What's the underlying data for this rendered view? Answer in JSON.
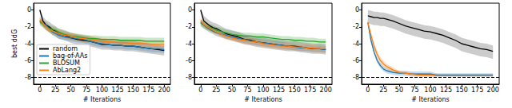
{
  "chart_data": [
    {
      "type": "line",
      "xlabel": "# Iterations",
      "ylabel": "best ddG",
      "legend": "lower left",
      "grid": false,
      "xlim": [
        -10,
        210
      ],
      "xticks": [
        0,
        25,
        50,
        75,
        100,
        125,
        150,
        175,
        200
      ],
      "ylim": [
        -8.8,
        0.8
      ],
      "yticks": [
        0,
        -2,
        -4,
        -6,
        -8
      ],
      "reference_line": {
        "value": -8,
        "color": "#000000",
        "line_style": "dashed"
      },
      "x": [
        0,
        5,
        10,
        15,
        20,
        25,
        30,
        40,
        50,
        60,
        70,
        80,
        90,
        100,
        110,
        120,
        130,
        140,
        150,
        160,
        170,
        180,
        190,
        200
      ],
      "series": [
        {
          "name": "random",
          "color": "#000000",
          "values": [
            0,
            -1.3,
            -1.8,
            -2.0,
            -2.3,
            -2.5,
            -2.8,
            -3.0,
            -3.3,
            -3.5,
            -3.6,
            -3.7,
            -3.9,
            -4.1,
            -4.1,
            -4.2,
            -4.2,
            -4.3,
            -4.3,
            -4.4,
            -4.5,
            -4.6,
            -4.7,
            -4.8
          ],
          "lower": [
            -0.3,
            -1.9,
            -2.4,
            -2.6,
            -2.9,
            -3.1,
            -3.4,
            -3.6,
            -3.9,
            -4.1,
            -4.2,
            -4.3,
            -4.5,
            -4.7,
            -4.7,
            -4.8,
            -4.8,
            -4.9,
            -4.9,
            -5.0,
            -5.1,
            -5.2,
            -5.3,
            -5.4
          ],
          "upper": [
            0.2,
            -0.8,
            -1.2,
            -1.4,
            -1.7,
            -1.9,
            -2.2,
            -2.4,
            -2.7,
            -2.9,
            -3.0,
            -3.1,
            -3.3,
            -3.5,
            -3.5,
            -3.6,
            -3.6,
            -3.7,
            -3.7,
            -3.8,
            -3.9,
            -4.0,
            -4.1,
            -4.2
          ]
        },
        {
          "name": "bag-of-AAs",
          "color": "#1f77b4",
          "values": [
            -1.3,
            -1.6,
            -1.8,
            -2.2,
            -2.6,
            -2.8,
            -3.0,
            -3.2,
            -3.3,
            -3.4,
            -3.5,
            -3.7,
            -3.9,
            -4.0,
            -4.1,
            -4.2,
            -4.2,
            -4.3,
            -4.3,
            -4.4,
            -4.5,
            -4.6,
            -4.6,
            -4.7
          ],
          "lower": [
            -1.7,
            -2.0,
            -2.2,
            -2.6,
            -3.0,
            -3.2,
            -3.4,
            -3.6,
            -3.7,
            -3.8,
            -3.9,
            -4.1,
            -4.3,
            -4.4,
            -4.5,
            -4.6,
            -4.6,
            -4.7,
            -4.7,
            -4.8,
            -4.9,
            -5.0,
            -5.0,
            -5.1
          ],
          "upper": [
            -0.9,
            -1.2,
            -1.4,
            -1.8,
            -2.2,
            -2.4,
            -2.6,
            -2.8,
            -2.9,
            -3.0,
            -3.1,
            -3.3,
            -3.5,
            -3.6,
            -3.7,
            -3.8,
            -3.8,
            -3.9,
            -3.9,
            -4.0,
            -4.1,
            -4.2,
            -4.2,
            -4.3
          ]
        },
        {
          "name": "BLOSUM",
          "color": "#2ca02c",
          "values": [
            -1.4,
            -1.7,
            -2.0,
            -2.2,
            -2.3,
            -2.4,
            -2.6,
            -2.9,
            -3.1,
            -3.2,
            -3.3,
            -3.4,
            -3.4,
            -3.5,
            -3.5,
            -3.5,
            -3.6,
            -3.6,
            -3.6,
            -3.6,
            -3.7,
            -3.7,
            -3.7,
            -3.7
          ],
          "lower": [
            -1.8,
            -2.1,
            -2.4,
            -2.6,
            -2.7,
            -2.8,
            -3.0,
            -3.3,
            -3.5,
            -3.6,
            -3.7,
            -3.8,
            -3.8,
            -3.9,
            -3.9,
            -3.9,
            -4.0,
            -4.0,
            -4.0,
            -4.0,
            -4.1,
            -4.1,
            -4.1,
            -4.1
          ],
          "upper": [
            -1.0,
            -1.3,
            -1.6,
            -1.8,
            -1.9,
            -2.0,
            -2.2,
            -2.5,
            -2.7,
            -2.8,
            -2.9,
            -3.0,
            -3.0,
            -3.1,
            -3.1,
            -3.1,
            -3.2,
            -3.2,
            -3.2,
            -3.2,
            -3.3,
            -3.3,
            -3.3,
            -3.3
          ]
        },
        {
          "name": "AbLang2",
          "color": "#ff7f0e",
          "values": [
            -1.2,
            -1.6,
            -2.0,
            -2.3,
            -2.5,
            -2.6,
            -2.8,
            -3.0,
            -3.1,
            -3.3,
            -3.4,
            -3.5,
            -3.6,
            -3.7,
            -3.8,
            -3.8,
            -3.9,
            -3.9,
            -4.0,
            -4.0,
            -4.0,
            -4.1,
            -4.1,
            -4.1
          ],
          "lower": [
            -1.6,
            -2.0,
            -2.4,
            -2.7,
            -2.9,
            -3.0,
            -3.2,
            -3.4,
            -3.5,
            -3.7,
            -3.8,
            -3.9,
            -4.0,
            -4.1,
            -4.2,
            -4.2,
            -4.3,
            -4.3,
            -4.4,
            -4.4,
            -4.4,
            -4.5,
            -4.5,
            -4.5
          ],
          "upper": [
            -0.8,
            -1.2,
            -1.6,
            -1.9,
            -2.1,
            -2.2,
            -2.4,
            -2.6,
            -2.7,
            -2.9,
            -3.0,
            -3.1,
            -3.2,
            -3.3,
            -3.4,
            -3.4,
            -3.5,
            -3.5,
            -3.6,
            -3.6,
            -3.6,
            -3.7,
            -3.7,
            -3.7
          ]
        }
      ]
    },
    {
      "type": "line",
      "xlabel": "# Iterations",
      "grid": false,
      "xlim": [
        -10,
        210
      ],
      "xticks": [
        0,
        25,
        50,
        75,
        100,
        125,
        150,
        175,
        200
      ],
      "ylim": [
        -8.8,
        0.8
      ],
      "yticks": [
        0,
        -2,
        -4,
        -6,
        -8
      ],
      "reference_line": {
        "value": -8,
        "color": "#000000",
        "line_style": "dashed"
      },
      "x": [
        0,
        5,
        10,
        15,
        20,
        25,
        30,
        40,
        50,
        60,
        70,
        80,
        90,
        100,
        110,
        120,
        130,
        140,
        150,
        160,
        170,
        180,
        190,
        200
      ],
      "series": [
        {
          "name": "random",
          "color": "#000000",
          "values": [
            0,
            -1.3,
            -1.6,
            -1.9,
            -2.1,
            -2.2,
            -2.4,
            -2.8,
            -3.0,
            -3.2,
            -3.5,
            -3.6,
            -3.8,
            -3.9,
            -4.0,
            -4.1,
            -4.2,
            -4.3,
            -4.3,
            -4.4,
            -4.5,
            -4.6,
            -4.6,
            -4.7
          ],
          "lower": [
            -0.3,
            -1.9,
            -2.2,
            -2.5,
            -2.7,
            -2.8,
            -3.0,
            -3.4,
            -3.6,
            -3.8,
            -4.1,
            -4.2,
            -4.4,
            -4.5,
            -4.6,
            -4.7,
            -4.8,
            -4.9,
            -4.9,
            -5.0,
            -5.1,
            -5.2,
            -5.2,
            -5.3
          ],
          "upper": [
            0.2,
            -0.7,
            -1.0,
            -1.3,
            -1.5,
            -1.6,
            -1.8,
            -2.2,
            -2.4,
            -2.6,
            -2.9,
            -3.0,
            -3.2,
            -3.3,
            -3.4,
            -3.5,
            -3.6,
            -3.7,
            -3.7,
            -3.8,
            -3.9,
            -4.0,
            -4.0,
            -4.1
          ]
        },
        {
          "name": "bag-of-AAs",
          "color": "#1f77b4",
          "values": [
            -1.5,
            -1.8,
            -2.1,
            -2.3,
            -2.5,
            -2.7,
            -2.8,
            -3.0,
            -3.2,
            -3.4,
            -3.5,
            -3.7,
            -3.8,
            -3.9,
            -4.0,
            -4.1,
            -4.2,
            -4.3,
            -4.4,
            -4.5,
            -4.5,
            -4.6,
            -4.6,
            -4.7
          ],
          "lower": [
            -1.9,
            -2.2,
            -2.5,
            -2.7,
            -2.9,
            -3.1,
            -3.2,
            -3.4,
            -3.6,
            -3.8,
            -3.9,
            -4.1,
            -4.2,
            -4.3,
            -4.4,
            -4.5,
            -4.6,
            -4.7,
            -4.8,
            -4.9,
            -4.9,
            -5.0,
            -5.0,
            -5.1
          ],
          "upper": [
            -1.1,
            -1.4,
            -1.7,
            -1.9,
            -2.1,
            -2.3,
            -2.4,
            -2.6,
            -2.8,
            -3.0,
            -3.1,
            -3.3,
            -3.4,
            -3.5,
            -3.6,
            -3.7,
            -3.8,
            -3.9,
            -4.0,
            -4.1,
            -4.1,
            -4.2,
            -4.2,
            -4.3
          ]
        },
        {
          "name": "BLOSUM",
          "color": "#2ca02c",
          "values": [
            -1.5,
            -1.8,
            -2.0,
            -2.1,
            -2.2,
            -2.4,
            -2.5,
            -2.7,
            -2.9,
            -3.0,
            -3.1,
            -3.1,
            -3.2,
            -3.2,
            -3.3,
            -3.4,
            -3.5,
            -3.5,
            -3.6,
            -3.6,
            -3.7,
            -3.7,
            -3.8,
            -3.8
          ],
          "lower": [
            -1.9,
            -2.2,
            -2.4,
            -2.5,
            -2.6,
            -2.8,
            -2.9,
            -3.1,
            -3.3,
            -3.4,
            -3.5,
            -3.5,
            -3.6,
            -3.6,
            -3.7,
            -3.8,
            -3.9,
            -3.9,
            -4.0,
            -4.0,
            -4.1,
            -4.1,
            -4.2,
            -4.2
          ],
          "upper": [
            -1.1,
            -1.4,
            -1.6,
            -1.7,
            -1.8,
            -2.0,
            -2.1,
            -2.3,
            -2.5,
            -2.6,
            -2.7,
            -2.7,
            -2.8,
            -2.8,
            -2.9,
            -3.0,
            -3.1,
            -3.1,
            -3.2,
            -3.2,
            -3.3,
            -3.3,
            -3.4,
            -3.4
          ]
        },
        {
          "name": "AbLang2",
          "color": "#ff7f0e",
          "values": [
            -1.3,
            -1.7,
            -2.0,
            -2.2,
            -2.4,
            -2.6,
            -2.8,
            -3.1,
            -3.3,
            -3.5,
            -3.6,
            -3.7,
            -3.8,
            -4.0,
            -4.1,
            -4.2,
            -4.3,
            -4.3,
            -4.4,
            -4.4,
            -4.5,
            -4.5,
            -4.6,
            -4.6
          ],
          "lower": [
            -1.7,
            -2.1,
            -2.4,
            -2.6,
            -2.8,
            -3.0,
            -3.2,
            -3.5,
            -3.7,
            -3.9,
            -4.0,
            -4.1,
            -4.2,
            -4.4,
            -4.5,
            -4.6,
            -4.7,
            -4.7,
            -4.8,
            -4.8,
            -4.9,
            -4.9,
            -5.0,
            -5.0
          ],
          "upper": [
            -0.9,
            -1.3,
            -1.6,
            -1.8,
            -2.0,
            -2.2,
            -2.4,
            -2.7,
            -2.9,
            -3.1,
            -3.2,
            -3.3,
            -3.4,
            -3.6,
            -3.7,
            -3.8,
            -3.9,
            -3.9,
            -4.0,
            -4.0,
            -4.1,
            -4.1,
            -4.2,
            -4.2
          ]
        }
      ]
    },
    {
      "type": "line",
      "xlabel": "# Iterations",
      "grid": false,
      "xlim": [
        -10,
        210
      ],
      "xticks": [
        0,
        25,
        50,
        75,
        100,
        125,
        150,
        175,
        200
      ],
      "ylim": [
        -8.8,
        0.8
      ],
      "yticks": [
        0,
        -2,
        -4,
        -6,
        -8
      ],
      "reference_line": {
        "value": -8,
        "color": "#000000",
        "line_style": "dashed"
      },
      "x": [
        0,
        5,
        10,
        15,
        20,
        25,
        30,
        40,
        50,
        60,
        70,
        80,
        90,
        100,
        110,
        120,
        130,
        140,
        150,
        160,
        170,
        180,
        190,
        200
      ],
      "series": [
        {
          "name": "random",
          "color": "#000000",
          "values": [
            -0.7,
            -0.8,
            -0.9,
            -0.9,
            -1.0,
            -1.0,
            -1.1,
            -1.3,
            -1.6,
            -1.9,
            -2.1,
            -2.3,
            -2.5,
            -2.6,
            -2.8,
            -3.0,
            -3.3,
            -3.6,
            -4.0,
            -4.2,
            -4.4,
            -4.6,
            -4.7,
            -4.9
          ],
          "lower": [
            -1.6,
            -1.7,
            -1.8,
            -1.8,
            -1.9,
            -1.9,
            -2.0,
            -2.2,
            -2.5,
            -2.8,
            -3.0,
            -3.2,
            -3.4,
            -3.5,
            -3.7,
            -3.9,
            -4.2,
            -4.5,
            -4.9,
            -5.1,
            -5.3,
            -5.5,
            -5.6,
            -5.8
          ],
          "upper": [
            0.0,
            -0.1,
            -0.2,
            -0.2,
            -0.3,
            -0.3,
            -0.4,
            -0.6,
            -0.9,
            -1.2,
            -1.4,
            -1.6,
            -1.8,
            -1.9,
            -2.1,
            -2.3,
            -2.6,
            -2.9,
            -3.3,
            -3.5,
            -3.7,
            -3.9,
            -4.0,
            -4.2
          ]
        },
        {
          "name": "bag-of-AAs",
          "color": "#1f77b4",
          "values": [
            -1.5,
            -3.6,
            -5.0,
            -6.0,
            -6.6,
            -7.0,
            -7.2,
            -7.4,
            -7.5,
            -7.5,
            -7.6,
            -7.6,
            -7.6,
            -7.6,
            -7.7,
            -7.7,
            -7.7,
            -7.7,
            -7.7,
            -7.7,
            -7.7,
            -7.7,
            -7.7,
            -7.7
          ],
          "lower": [
            -1.8,
            -3.9,
            -5.3,
            -6.3,
            -6.9,
            -7.3,
            -7.5,
            -7.7,
            -7.8,
            -7.8,
            -7.9,
            -7.9,
            -7.9,
            -7.9,
            -7.9,
            -7.9,
            -7.9,
            -7.9,
            -7.9,
            -7.9,
            -7.9,
            -7.9,
            -7.9,
            -7.9
          ],
          "upper": [
            -1.2,
            -3.3,
            -4.7,
            -5.7,
            -6.3,
            -6.7,
            -6.9,
            -7.1,
            -7.2,
            -7.2,
            -7.3,
            -7.3,
            -7.3,
            -7.3,
            -7.5,
            -7.5,
            -7.5,
            -7.5,
            -7.5,
            -7.5,
            -7.5,
            -7.5,
            -7.5,
            -7.5
          ]
        },
        {
          "name": "AbLang2",
          "color": "#ff7f0e",
          "values": [
            -1.5,
            -3.0,
            -4.3,
            -5.3,
            -6.0,
            -6.4,
            -6.7,
            -7.1,
            -7.4,
            -7.5,
            -7.6,
            -7.7,
            -7.7,
            -7.7,
            -7.8,
            -7.8,
            -7.8,
            -7.8,
            -7.8,
            -7.8,
            -7.8,
            -7.8,
            -7.8,
            -7.8
          ],
          "lower": [
            -1.8,
            -3.4,
            -4.7,
            -5.7,
            -6.4,
            -6.8,
            -7.0,
            -7.4,
            -7.6,
            -7.7,
            -7.8,
            -7.9,
            -7.9,
            -7.9,
            -7.9,
            -7.9,
            -7.9,
            -7.9,
            -7.9,
            -7.9,
            -7.9,
            -7.9,
            -7.9,
            -7.9
          ],
          "upper": [
            -1.2,
            -2.6,
            -3.9,
            -4.9,
            -5.6,
            -6.0,
            -6.4,
            -6.8,
            -7.2,
            -7.3,
            -7.4,
            -7.5,
            -7.5,
            -7.5,
            -7.7,
            -7.7,
            -7.7,
            -7.7,
            -7.7,
            -7.7,
            -7.7,
            -7.7,
            -7.7,
            -7.7
          ]
        }
      ]
    }
  ]
}
